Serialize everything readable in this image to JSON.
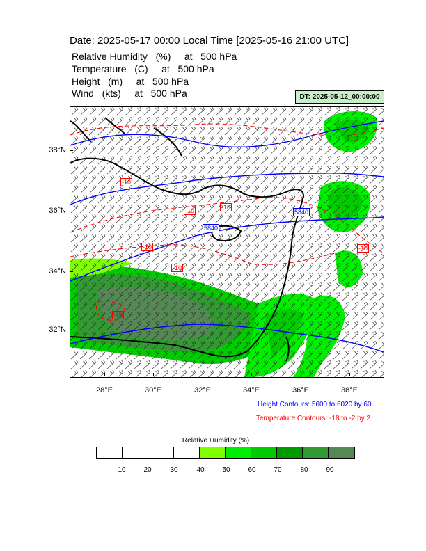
{
  "header": {
    "title": "Date: 2025-05-17  00:00 Local Time [2025-05-16  21:00 UTC]",
    "variables": [
      "Relative Humidity   (%)     at   500 hPa",
      "Temperature   (C)     at   500 hPa",
      "Height   (m)     at   500 hPa",
      "Wind   (kts)     at   500 hPa"
    ],
    "dt_badge": "DT: 2025-05-12_00:00:00"
  },
  "map": {
    "lat_labels": [
      "38°N",
      "36°N",
      "34°N",
      "32°N"
    ],
    "lon_labels": [
      "28°E",
      "30°E",
      "32°E",
      "34°E",
      "36°E",
      "38°E"
    ],
    "height_contour_labels": [
      "5840",
      "5840"
    ],
    "temperature_contour_labels": [
      "-10",
      "-10",
      "-10",
      "-10",
      "-10",
      "-10",
      "-10"
    ],
    "colors": {
      "height_contour": "#0000ff",
      "temperature_contour": "#ff0000",
      "coastline": "#000000"
    }
  },
  "legend": {
    "height": "Height Contours: 5600 to 6020 by 60",
    "temperature": "Temperature Contours: -18 to -2 by 2"
  },
  "colorbar": {
    "title": "Relative Humidity  (%)",
    "ticks": [
      "10",
      "20",
      "30",
      "40",
      "50",
      "60",
      "70",
      "80",
      "90"
    ],
    "colors": [
      "#ffffff",
      "#ffffff",
      "#ffffff",
      "#ffffff",
      "#80ff00",
      "#00ee00",
      "#00cc00",
      "#009900",
      "#339933",
      "#558855"
    ]
  }
}
